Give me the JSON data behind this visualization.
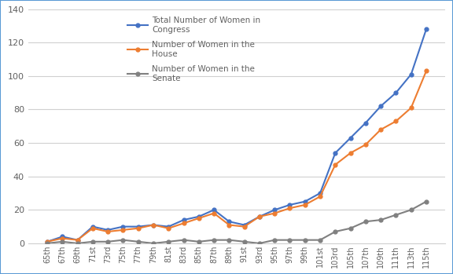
{
  "congresses": [
    "65th",
    "67th",
    "69th",
    "71st",
    "73rd",
    "75th",
    "77th",
    "79th",
    "81st",
    "83rd",
    "85th",
    "87th",
    "89th",
    "91st",
    "93rd",
    "95th",
    "97th",
    "99th",
    "101st",
    "103rd",
    "105th",
    "107th",
    "109th",
    "111th",
    "113th",
    "115th"
  ],
  "house": [
    1,
    3,
    2,
    9,
    7,
    8,
    9,
    11,
    9,
    12,
    15,
    18,
    11,
    10,
    16,
    18,
    21,
    23,
    28,
    47,
    54,
    59,
    68,
    73,
    81,
    103
  ],
  "senate": [
    0,
    1,
    0,
    1,
    1,
    2,
    1,
    0,
    1,
    2,
    1,
    2,
    2,
    1,
    0,
    2,
    2,
    2,
    2,
    7,
    9,
    13,
    14,
    17,
    20,
    25
  ],
  "total": [
    1,
    4,
    2,
    10,
    8,
    10,
    10,
    11,
    10,
    14,
    16,
    20,
    13,
    11,
    16,
    20,
    23,
    25,
    30,
    54,
    63,
    72,
    82,
    90,
    101,
    128
  ],
  "line_colors": {
    "total": "#4472C4",
    "house": "#ED7D31",
    "senate": "#808080"
  },
  "ylim": [
    0,
    140
  ],
  "yticks": [
    0,
    20,
    40,
    60,
    80,
    100,
    120,
    140
  ],
  "legend_labels": {
    "total": "Total Number of Women in\nCongress",
    "house": "Number of Women in the\nHouse",
    "senate": "Number of Women in the\nSenate"
  },
  "background_color": "#FFFFFF",
  "border_color": "#5B9BD5",
  "grid_color": "#D0D0D0",
  "tick_color": "#606060"
}
